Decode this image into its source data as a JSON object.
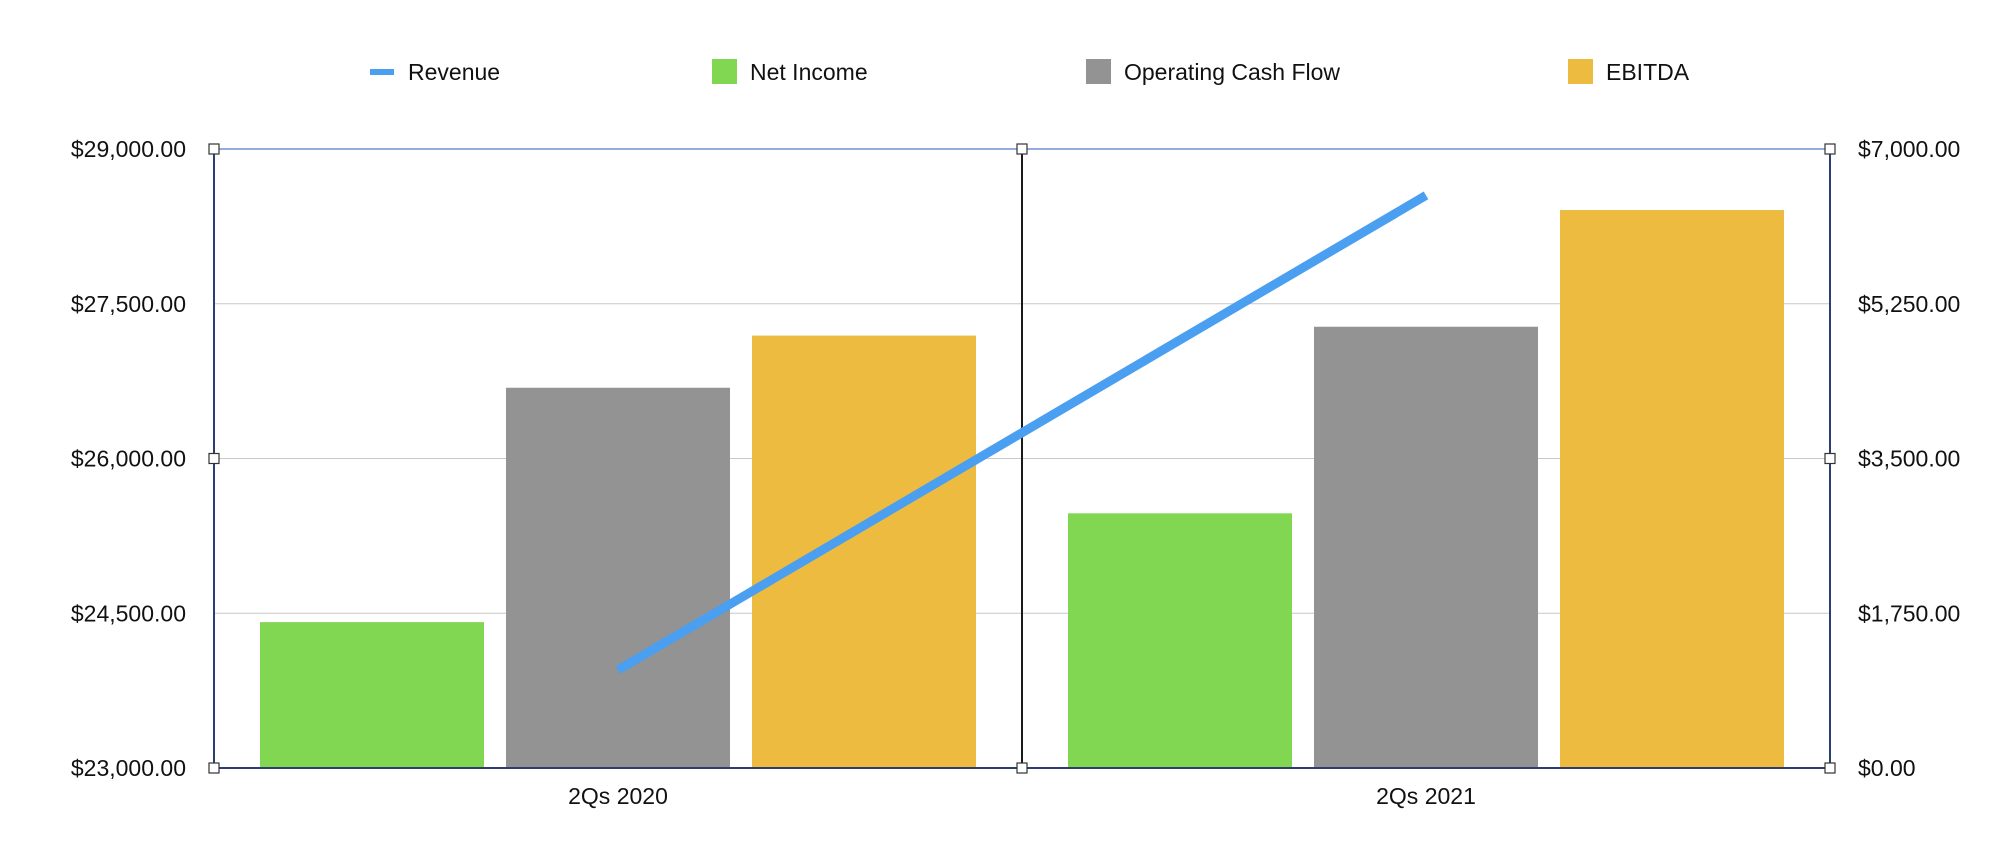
{
  "chart_data": {
    "type": "bar",
    "title": "",
    "xlabel": "",
    "ylabel": "",
    "categories": [
      "2Qs 2020",
      "2Qs 2021"
    ],
    "left_axis": {
      "ylim": [
        23000,
        29000
      ],
      "ticks": [
        23000,
        24500,
        26000,
        27500,
        29000
      ],
      "tick_labels": [
        "$23,000.00",
        "$24,500.00",
        "$26,000.00",
        "$27,500.00",
        "$29,000.00"
      ]
    },
    "right_axis": {
      "ylim": [
        0,
        7000
      ],
      "ticks": [
        0,
        1750,
        3500,
        5250,
        7000
      ],
      "tick_labels": [
        "$0.00",
        "$1,750.00",
        "$3,500.00",
        "$5,250.00",
        "$7,000.00"
      ]
    },
    "series": [
      {
        "name": "Revenue",
        "kind": "line",
        "axis": "left",
        "color": "#4a9ff0",
        "values": [
          23950,
          28550
        ]
      },
      {
        "name": "Net Income",
        "kind": "bar",
        "axis": "right",
        "color": "#82d752",
        "values": [
          1650,
          2880
        ]
      },
      {
        "name": "Operating Cash Flow",
        "kind": "bar",
        "axis": "right",
        "color": "#939393",
        "values": [
          4300,
          4990
        ]
      },
      {
        "name": "EBITDA",
        "kind": "bar",
        "axis": "right",
        "color": "#edbb40",
        "values": [
          4890,
          6310
        ]
      }
    ],
    "grid": true,
    "legend_position": "top"
  }
}
